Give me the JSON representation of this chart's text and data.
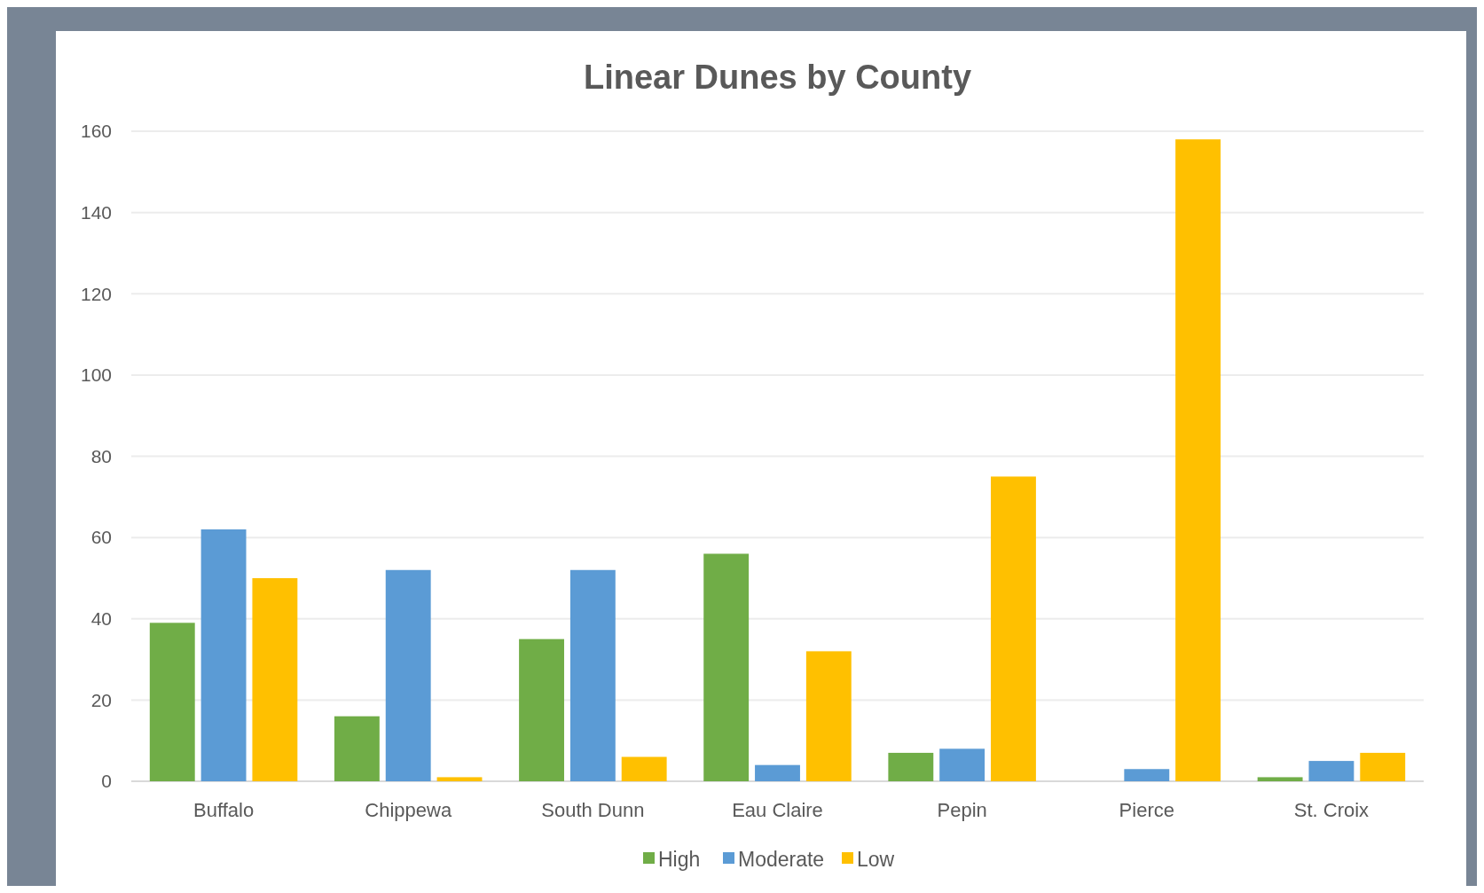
{
  "chart_data": {
    "type": "bar",
    "title": "Linear Dunes by County",
    "categories": [
      "Buffalo",
      "Chippewa",
      "South Dunn",
      "Eau Claire",
      "Pepin",
      "Pierce",
      "St. Croix"
    ],
    "series": [
      {
        "name": "High",
        "color": "#70ad47",
        "values": [
          39,
          16,
          35,
          56,
          7,
          0,
          1
        ]
      },
      {
        "name": "Moderate",
        "color": "#5b9bd5",
        "values": [
          62,
          52,
          52,
          4,
          8,
          3,
          5
        ]
      },
      {
        "name": "Low",
        "color": "#ffc000",
        "values": [
          50,
          1,
          6,
          32,
          75,
          158,
          7
        ]
      }
    ],
    "ylim": [
      0,
      160
    ],
    "yticks": [
      0,
      20,
      40,
      60,
      80,
      100,
      120,
      140,
      160
    ],
    "grid": "y",
    "legend": "bottom"
  }
}
